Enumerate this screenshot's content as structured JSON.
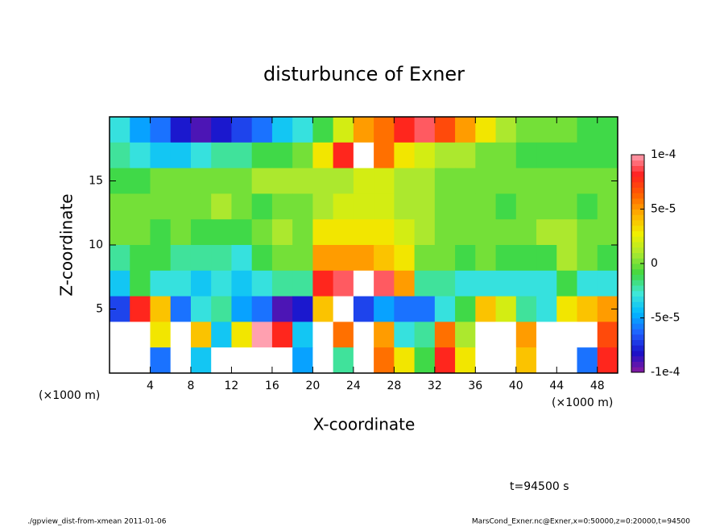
{
  "chart_data": {
    "type": "heatmap",
    "title": "disturbunce of Exner",
    "x_label": "X-coordinate",
    "y_label": "Z-coordinate",
    "x_unit_label": "(×1000 m)",
    "y_unit_label": "(×1000 m)",
    "time_label": "t=94500 s",
    "footer_left": "./gpview_dist-from-xmean  2011-01-06",
    "footer_right": "MarsCond_Exner.nc@Exner,x=0:50000,z=0:20000,t=94500",
    "xlim": [
      0,
      50
    ],
    "ylim": [
      0,
      20
    ],
    "xticks": [
      4,
      8,
      12,
      16,
      20,
      24,
      28,
      32,
      36,
      40,
      44,
      48
    ],
    "yticks": [
      5,
      10,
      15
    ],
    "x": [
      1,
      3,
      5,
      7,
      9,
      11,
      13,
      15,
      17,
      19,
      21,
      23,
      25,
      27,
      29,
      31,
      33,
      35,
      37,
      39,
      41,
      43,
      45,
      47,
      49
    ],
    "y": [
      19,
      17,
      15,
      13,
      11,
      9,
      7,
      5,
      3,
      1
    ],
    "z": [
      [
        -3e-05,
        -5e-05,
        -6e-05,
        -8e-05,
        -9e-05,
        -8e-05,
        -7e-05,
        -6e-05,
        -4e-05,
        -3e-05,
        -1e-05,
        2e-05,
        5e-05,
        6e-05,
        8e-05,
        9e-05,
        7e-05,
        5e-05,
        3e-05,
        1e-05,
        0,
        0,
        0,
        -1e-05,
        -1e-05
      ],
      [
        -2e-05,
        -3e-05,
        -4e-05,
        -4e-05,
        -3e-05,
        -2e-05,
        -2e-05,
        -1e-05,
        -1e-05,
        0,
        3e-05,
        8e-05,
        0.00011,
        6e-05,
        3e-05,
        2e-05,
        1e-05,
        1e-05,
        0,
        0,
        -1e-05,
        -1e-05,
        -1e-05,
        -1e-05,
        -1e-05
      ],
      [
        -1e-05,
        -1e-05,
        0,
        0,
        0,
        0,
        0,
        1e-05,
        1e-05,
        1e-05,
        1e-05,
        1e-05,
        2e-05,
        2e-05,
        1e-05,
        1e-05,
        0,
        0,
        0,
        0,
        0,
        0,
        0,
        0,
        0
      ],
      [
        0,
        0,
        0,
        0,
        0,
        1e-05,
        0,
        -1e-05,
        0,
        0,
        1e-05,
        2e-05,
        2e-05,
        2e-05,
        1e-05,
        1e-05,
        0,
        0,
        0,
        -1e-05,
        0,
        0,
        0,
        -1e-05,
        0
      ],
      [
        0,
        0,
        -1e-05,
        0,
        -1e-05,
        -1e-05,
        -1e-05,
        0,
        1e-05,
        0,
        3e-05,
        3e-05,
        3e-05,
        3e-05,
        2e-05,
        1e-05,
        0,
        0,
        0,
        0,
        0,
        1e-05,
        1e-05,
        0,
        0
      ],
      [
        -2e-05,
        -1e-05,
        -1e-05,
        -2e-05,
        -2e-05,
        -2e-05,
        -3e-05,
        -1e-05,
        0,
        0,
        5e-05,
        5e-05,
        5e-05,
        4e-05,
        3e-05,
        0,
        0,
        -1e-05,
        0,
        -1e-05,
        -1e-05,
        -1e-05,
        1e-05,
        0,
        -1e-05
      ],
      [
        -4e-05,
        -1e-05,
        -3e-05,
        -3e-05,
        -4e-05,
        -3e-05,
        -4e-05,
        -3e-05,
        -2e-05,
        -2e-05,
        8e-05,
        9e-05,
        0.00011,
        9e-05,
        5e-05,
        -2e-05,
        -2e-05,
        -3e-05,
        -3e-05,
        -3e-05,
        -3e-05,
        -3e-05,
        -1e-05,
        -3e-05,
        -3e-05
      ],
      [
        -7e-05,
        8e-05,
        4e-05,
        -6e-05,
        -3e-05,
        -2e-05,
        -5e-05,
        -6e-05,
        -9e-05,
        -8e-05,
        4e-05,
        0.00012,
        -7e-05,
        -5e-05,
        -6e-05,
        -6e-05,
        -3e-05,
        -1e-05,
        4e-05,
        2e-05,
        -2e-05,
        -3e-05,
        3e-05,
        4e-05,
        5e-05
      ],
      [
        0.00012,
        0.00014,
        3e-05,
        0.00011,
        4e-05,
        -4e-05,
        3e-05,
        0.0001,
        8e-05,
        -4e-05,
        0.00013,
        6e-05,
        -0.00012,
        5e-05,
        -3e-05,
        -2e-05,
        6e-05,
        1e-05,
        0.00012,
        0.00011,
        5e-05,
        0.00012,
        0.00012,
        0.00011,
        7e-05
      ],
      [
        0.00012,
        0.00012,
        -6e-05,
        0.00012,
        -4e-05,
        0.00012,
        0.00012,
        0.00012,
        0.00012,
        -5e-05,
        0.00012,
        -2e-05,
        -0.00014,
        6e-05,
        3e-05,
        -1e-05,
        8e-05,
        3e-05,
        0.00012,
        0.00012,
        4e-05,
        0.00012,
        0.00012,
        -6e-05,
        8e-05
      ]
    ],
    "colorbar_lim": [
      -0.0001,
      0.0001
    ],
    "colorbar_ticks": [
      {
        "value": 0.0001,
        "label": "1e-4"
      },
      {
        "value": 5e-05,
        "label": "5e-5"
      },
      0,
      {
        "value": -5e-05,
        "label": "-5e-5"
      },
      {
        "value": -0.0001,
        "label": "-1e-4"
      }
    ],
    "colorscale": [
      "#8a1a9e",
      "#1a10c8",
      "#2060ff",
      "#00b8ff",
      "#40e8d8",
      "#40d840",
      "#a8e830",
      "#f0f000",
      "#ffb000",
      "#ff6000",
      "#ff2020",
      "#ffa0b0"
    ],
    "out_of_range_color": "#ffffff"
  }
}
